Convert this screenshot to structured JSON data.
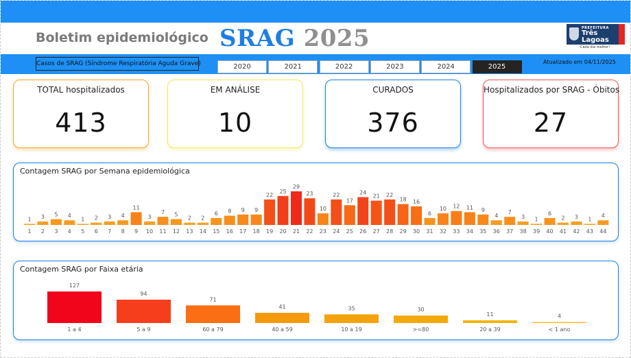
{
  "header": {
    "subtitle": "Boletim epidemiológico",
    "title_srag": "SRAG",
    "title_year": "2025",
    "logo_small": "PREFEITURA",
    "logo_city": "Três\nLagoas",
    "logo_slogan": "Cada dia melhor!"
  },
  "filter": {
    "casos_label": "Casos de SRAG (Síndrome Respiratória Aguda Grave)",
    "years": [
      "2020",
      "2021",
      "2022",
      "2023",
      "2024",
      "2025"
    ],
    "selected_year": "2025",
    "updated": "Atualizado em 04/11/2025"
  },
  "cards": [
    {
      "label": "TOTAL hospitalizados",
      "value": "413",
      "color": "#f5a623"
    },
    {
      "label": "EM ANÁLISE",
      "value": "10",
      "color": "#f2e65a"
    },
    {
      "label": "CURADOS",
      "value": "376",
      "color": "#1e7fe0"
    },
    {
      "label": "Hospitalizados por SRAG - Óbitos",
      "value": "27",
      "color": "#e8575a"
    }
  ],
  "chart_data": [
    {
      "type": "bar",
      "title": "Contagem SRAG por Semana epidemiológica",
      "categories": [
        "1",
        "2",
        "3",
        "4",
        "5",
        "6",
        "7",
        "8",
        "9",
        "10",
        "11",
        "12",
        "13",
        "14",
        "15",
        "16",
        "17",
        "18",
        "19",
        "20",
        "21",
        "22",
        "23",
        "24",
        "25",
        "26",
        "27",
        "28",
        "29",
        "30",
        "31",
        "32",
        "33",
        "34",
        "35",
        "36",
        "37",
        "38",
        "39",
        "40",
        "41",
        "42",
        "43",
        "44"
      ],
      "values": [
        1,
        3,
        5,
        4,
        1,
        2,
        3,
        4,
        11,
        3,
        7,
        5,
        2,
        2,
        6,
        8,
        9,
        9,
        22,
        25,
        29,
        23,
        10,
        22,
        17,
        24,
        21,
        22,
        18,
        16,
        6,
        10,
        12,
        11,
        9,
        4,
        7,
        3,
        1,
        6,
        2,
        3,
        1,
        4
      ],
      "color_scale": [
        "#f5a623",
        "#f97316",
        "#ee2a1b"
      ]
    },
    {
      "type": "bar",
      "title": "Contagem SRAG por Faixa etária",
      "categories": [
        "1 a 4",
        "5 a 9",
        "60 a 79",
        "40 a 59",
        "10 a 19",
        ">=80",
        "20 a 39",
        "< 1 ano"
      ],
      "values": [
        127,
        94,
        71,
        41,
        35,
        30,
        11,
        4
      ],
      "colors": [
        "#f0051b",
        "#f53e1c",
        "#fa6e14",
        "#f59a0c",
        "#f5a30c",
        "#f5a80c",
        "#f5b311",
        "#f5bf2a"
      ]
    }
  ]
}
